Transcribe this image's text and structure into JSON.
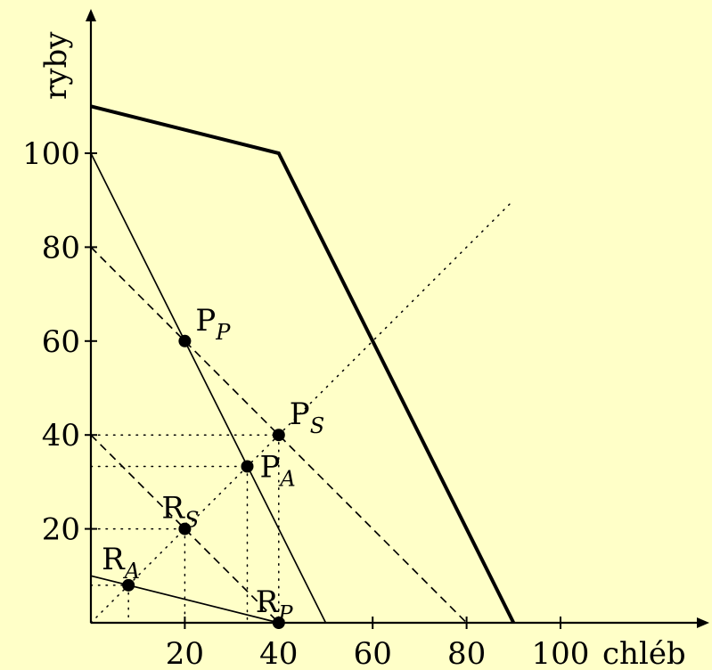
{
  "chart_data": {
    "type": "line",
    "xlabel": "chléb",
    "ylabel": "ryby",
    "xlim": [
      0,
      100
    ],
    "ylim": [
      0,
      110
    ],
    "x_ticks": [
      {
        "value": 20,
        "label": "20"
      },
      {
        "value": 40,
        "label": "40"
      },
      {
        "value": 60,
        "label": "60"
      },
      {
        "value": 80,
        "label": "80"
      },
      {
        "value": 100,
        "label": "100"
      }
    ],
    "y_ticks": [
      {
        "value": 20,
        "label": "20"
      },
      {
        "value": 40,
        "label": "40"
      },
      {
        "value": 60,
        "label": "60"
      },
      {
        "value": 80,
        "label": "80"
      },
      {
        "value": 100,
        "label": "100"
      }
    ],
    "lines": [
      {
        "style": "thick",
        "points": [
          [
            0,
            110
          ],
          [
            40,
            100
          ],
          [
            90,
            0
          ]
        ]
      },
      {
        "style": "solid",
        "points": [
          [
            0,
            100
          ],
          [
            50,
            0
          ]
        ]
      },
      {
        "style": "solid",
        "points": [
          [
            0,
            10
          ],
          [
            40,
            0
          ]
        ]
      },
      {
        "style": "dashed",
        "points": [
          [
            0,
            80
          ],
          [
            80,
            0
          ]
        ]
      },
      {
        "style": "dashed",
        "points": [
          [
            0,
            40
          ],
          [
            40,
            0
          ]
        ]
      },
      {
        "style": "dotted",
        "points": [
          [
            0,
            0
          ],
          [
            90,
            90
          ]
        ]
      },
      {
        "style": "dotted",
        "points": [
          [
            0,
            40
          ],
          [
            40,
            40
          ]
        ]
      },
      {
        "style": "dotted",
        "points": [
          [
            40,
            40
          ],
          [
            40,
            0
          ]
        ]
      },
      {
        "style": "dotted",
        "points": [
          [
            0,
            33.3
          ],
          [
            33.3,
            33.3
          ]
        ]
      },
      {
        "style": "dotted",
        "points": [
          [
            33.3,
            33.3
          ],
          [
            33.3,
            0
          ]
        ]
      },
      {
        "style": "dotted",
        "points": [
          [
            0,
            20
          ],
          [
            20,
            20
          ]
        ]
      },
      {
        "style": "dotted",
        "points": [
          [
            20,
            20
          ],
          [
            20,
            0
          ]
        ]
      },
      {
        "style": "dotted",
        "points": [
          [
            0,
            8
          ],
          [
            8,
            8
          ]
        ]
      },
      {
        "style": "dotted",
        "points": [
          [
            8,
            8
          ],
          [
            8,
            0
          ]
        ]
      }
    ],
    "points": [
      {
        "label": "P",
        "sub": "P",
        "x": 20,
        "y": 60,
        "label_pos": "upper-right"
      },
      {
        "label": "P",
        "sub": "S",
        "x": 40,
        "y": 40,
        "label_pos": "upper-right"
      },
      {
        "label": "P",
        "sub": "A",
        "x": 33.3,
        "y": 33.3,
        "label_pos": "right"
      },
      {
        "label": "R",
        "sub": "S",
        "x": 20,
        "y": 20,
        "label_pos": "upper"
      },
      {
        "label": "R",
        "sub": "A",
        "x": 8,
        "y": 8,
        "label_pos": "upper-left"
      },
      {
        "label": "R",
        "sub": "P",
        "x": 40,
        "y": 0,
        "label_pos": "upper"
      }
    ],
    "colors": {
      "background": "#ffffc8",
      "ink": "#000000"
    }
  }
}
